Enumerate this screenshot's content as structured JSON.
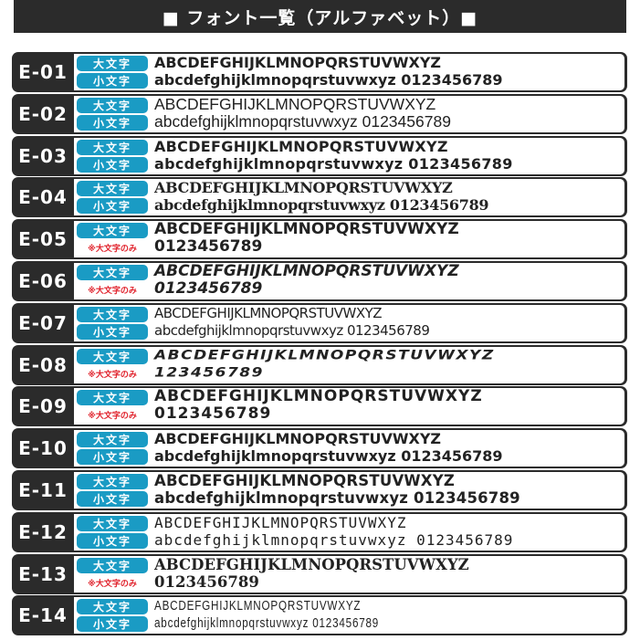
{
  "header": {
    "title": "■ フォント一覧（アルファベット）■"
  },
  "labels": {
    "upper": "大文字",
    "lower": "小文字",
    "upper_only": "※大文字のみ"
  },
  "colors": {
    "dark": "#2b2b2b",
    "badge": "#1a9bc4",
    "note": "#e0202a"
  },
  "rows": [
    {
      "id": "E-01",
      "line1": "ABCDEFGHIJKLMNOPQRSTUVWXYZ",
      "line2": "abcdefghijklmnopqrstuvwxyz 0123456789",
      "upper_only": false
    },
    {
      "id": "E-02",
      "line1": "ABCDEFGHIJKLMNOPQRSTUVWXYZ",
      "line2": "abcdefghijklmnopqrstuvwxyz 0123456789",
      "upper_only": false
    },
    {
      "id": "E-03",
      "line1": "ABCDEFGHIJKLMNOPQRSTUVWXYZ",
      "line2": "abcdefghijklmnopqrstuvwxyz 0123456789",
      "upper_only": false
    },
    {
      "id": "E-04",
      "line1": "ABCDEFGHIJKLMNOPQRSTUVWXYZ",
      "line2": "abcdefghijklmnopqrstuvwxyz 0123456789",
      "upper_only": false
    },
    {
      "id": "E-05",
      "line1": "ABCDEFGHIJKLMNOPQRSTUVWXYZ",
      "line2": "0123456789",
      "upper_only": true
    },
    {
      "id": "E-06",
      "line1": "ABCDEFGHIJKLMNOPQRSTUVWXYZ",
      "line2": "0123456789",
      "upper_only": true
    },
    {
      "id": "E-07",
      "line1": "ABCDEFGHIJKLMNOPQRSTUVWXYZ",
      "line2": "abcdefghijklmnopqrstuvwxyz 0123456789",
      "upper_only": false
    },
    {
      "id": "E-08",
      "line1": "ABCDEFGHIJKLMNOPQRSTUVWXYZ",
      "line2": "123456789",
      "upper_only": true
    },
    {
      "id": "E-09",
      "line1": "ABCDEFGHIJKLMNOPQRSTUVWXYZ",
      "line2": "0123456789",
      "upper_only": true
    },
    {
      "id": "E-10",
      "line1": "ABCDEFGHIJKLMNOPQRSTUVWXYZ",
      "line2": "abcdefghijklmnopqrstuvwxyz 0123456789",
      "upper_only": false
    },
    {
      "id": "E-11",
      "line1": "ABCDEFGHIJKLMNOPQRSTUVWXYZ",
      "line2": "abcdefghijklmnopqrstuvwxyz 0123456789",
      "upper_only": false
    },
    {
      "id": "E-12",
      "line1": "ABCDEFGHIJKLMNOPQRSTUVWXYZ",
      "line2": "abcdefghijklmnopqrstuvwxyz 0123456789",
      "upper_only": false
    },
    {
      "id": "E-13",
      "line1": "ABCDEFGHIJKLMNOPQRSTUVWXYZ",
      "line2": "0123456789",
      "upper_only": true
    },
    {
      "id": "E-14",
      "line1": "ABCDEFGHIJKLMNOPQRSTUVWXYZ",
      "line2": "abcdefghijklmnopqrstuvwxyz 0123456789",
      "upper_only": false
    }
  ]
}
